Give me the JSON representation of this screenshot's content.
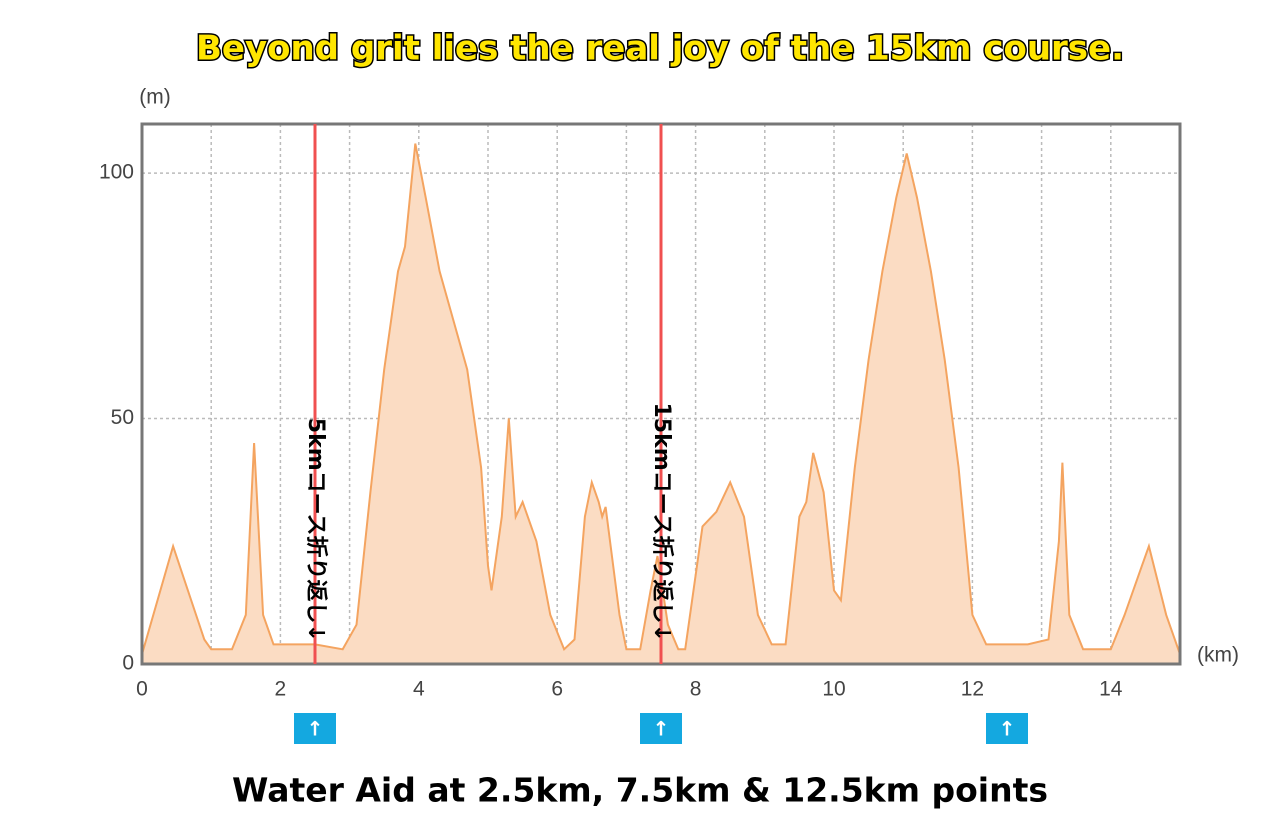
{
  "chart_data": {
    "type": "area",
    "title": "Beyond grit lies the real joy of the 15km course.",
    "subtitle": "Water Aid at 2.5km, 7.5km & 12.5km points",
    "y_label": "(m)",
    "x_label": "(km)",
    "color": "#f4a460",
    "fill": "#fbdcc3",
    "grid": true,
    "xlim": [
      0,
      15
    ],
    "ylim": [
      0,
      110
    ],
    "xticks": [
      0,
      2,
      4,
      6,
      8,
      10,
      12,
      14
    ],
    "x_minor_grid": [
      1,
      3,
      5,
      7,
      9,
      11,
      13
    ],
    "yticks": [
      0,
      50,
      100
    ],
    "x": [
      0,
      0.45,
      0.9,
      1.0,
      1.3,
      1.5,
      1.62,
      1.75,
      1.9,
      2.5,
      2.9,
      3.1,
      3.3,
      3.5,
      3.7,
      3.8,
      3.95,
      4.1,
      4.3,
      4.5,
      4.7,
      4.9,
      5.0,
      5.05,
      5.2,
      5.3,
      5.4,
      5.5,
      5.7,
      5.9,
      6.1,
      6.25,
      6.4,
      6.5,
      6.6,
      6.65,
      6.7,
      6.9,
      7.0,
      7.2,
      7.35,
      7.45,
      7.6,
      7.75,
      7.85,
      8.1,
      8.3,
      8.5,
      8.7,
      8.9,
      9.1,
      9.3,
      9.5,
      9.6,
      9.7,
      9.85,
      10.0,
      10.1,
      10.3,
      10.5,
      10.7,
      10.9,
      11.05,
      11.2,
      11.4,
      11.6,
      11.8,
      12.0,
      12.2,
      12.4,
      12.8,
      13.1,
      13.25,
      13.3,
      13.4,
      13.6,
      14.0,
      14.2,
      14.45,
      14.55,
      14.8,
      15.0
    ],
    "y": [
      2,
      24,
      5,
      3,
      3,
      10,
      45,
      10,
      4,
      4,
      3,
      8,
      35,
      60,
      80,
      85,
      106,
      95,
      80,
      70,
      60,
      40,
      20,
      15,
      30,
      50,
      30,
      33,
      25,
      10,
      3,
      5,
      30,
      37,
      33,
      30,
      32,
      10,
      3,
      3,
      15,
      22,
      8,
      3,
      3,
      28,
      31,
      37,
      30,
      10,
      4,
      4,
      30,
      33,
      43,
      35,
      15,
      13,
      40,
      62,
      80,
      95,
      104,
      95,
      80,
      62,
      40,
      10,
      4,
      4,
      4,
      5,
      25,
      41,
      10,
      3,
      3,
      10,
      20,
      24,
      10,
      2
    ],
    "annotations": [
      {
        "x": 2.5,
        "text": "5kmコース折り返し↓",
        "color": "#f05050"
      },
      {
        "x": 7.5,
        "text": "15kmコース折り返し↓",
        "color": "#f05050"
      }
    ],
    "water_aid": [
      {
        "x": 2.5,
        "label": "↑"
      },
      {
        "x": 7.5,
        "label": "↑"
      },
      {
        "x": 12.5,
        "label": "↑"
      }
    ],
    "water_aid_color": "#14a8e0"
  }
}
